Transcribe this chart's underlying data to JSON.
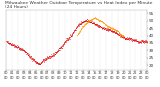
{
  "title": "Milwaukee Weather Outdoor Temperature vs Heat Index per Minute (24 Hours)",
  "title_fontsize": 3.2,
  "bg_color": "#ffffff",
  "plot_bg_color": "#ffffff",
  "line_color_temp": "#dd0000",
  "line_color_heat": "#ff9900",
  "grid_color": "#aaaaaa",
  "tick_color": "#333333",
  "text_color": "#333333",
  "xlim": [
    0,
    1440
  ],
  "ylim": [
    17,
    57
  ],
  "yticks": [
    20,
    25,
    30,
    35,
    40,
    45,
    50,
    55
  ],
  "ylabel_fontsize": 3.0,
  "xlabel_fontsize": 2.5,
  "marker_size": 0.7,
  "temp_x": [
    0,
    30,
    60,
    90,
    120,
    150,
    180,
    210,
    240,
    270,
    300,
    330,
    360,
    390,
    420,
    450,
    480,
    510,
    540,
    570,
    600,
    630,
    660,
    690,
    720,
    750,
    780,
    810,
    840,
    870,
    900,
    930,
    960,
    990,
    1020,
    1050,
    1080,
    1110,
    1140,
    1170,
    1200,
    1230,
    1260,
    1290,
    1320,
    1350,
    1380,
    1410,
    1440
  ],
  "temp_y": [
    36,
    35,
    34,
    33,
    32,
    31,
    30,
    28,
    26,
    24,
    22,
    21,
    22,
    24,
    25,
    26,
    27,
    29,
    31,
    33,
    36,
    38,
    40,
    43,
    46,
    48,
    49,
    50,
    50,
    49,
    48,
    47,
    46,
    45,
    44,
    44,
    43,
    42,
    41,
    40,
    39,
    38,
    38,
    37,
    37,
    36,
    36,
    36,
    36
  ],
  "heat_x": [
    720,
    750,
    780,
    810,
    840,
    870,
    900,
    930,
    960,
    990,
    1020,
    1050,
    1080,
    1110,
    1140,
    1170,
    1200
  ],
  "heat_y": [
    40,
    43,
    46,
    48,
    50,
    51,
    52,
    51,
    50,
    49,
    47,
    46,
    45,
    44,
    43,
    41,
    40
  ],
  "vgrid_positions": [
    0,
    60,
    120,
    180,
    240,
    300,
    360,
    420,
    480,
    540,
    600,
    660,
    720,
    780,
    840,
    900,
    960,
    1020,
    1080,
    1140,
    1200,
    1260,
    1320,
    1380,
    1440
  ]
}
